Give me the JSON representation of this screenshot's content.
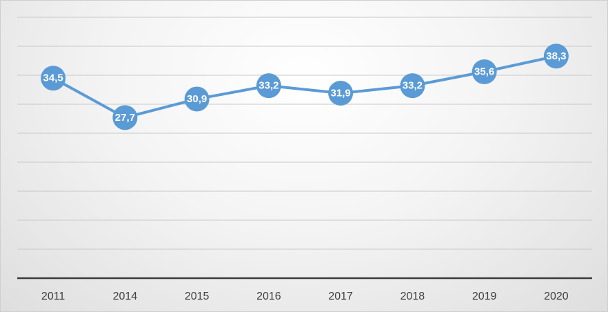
{
  "colors": {
    "series": "#5b9bd5",
    "data_label": "#ffffff",
    "gridline": "#c8c8c8",
    "axis": "#3a3a3a",
    "tick_label": "#404040"
  },
  "chart_data": {
    "type": "line",
    "title": "",
    "xlabel": "",
    "ylabel": "",
    "categories": [
      "2011",
      "2014",
      "2015",
      "2016",
      "2017",
      "2018",
      "2019",
      "2020"
    ],
    "series": [
      {
        "values": [
          34.5,
          27.7,
          30.9,
          33.2,
          31.9,
          33.2,
          35.6,
          38.3
        ],
        "data_labels": [
          "34,5",
          "27,7",
          "30,9",
          "33,2",
          "31,9",
          "33,2",
          "35,6",
          "38,3"
        ]
      }
    ],
    "ylim": [
      0,
      45
    ],
    "y_gridline_step": 5,
    "y_tick_labels_shown": false,
    "grid": true,
    "legend": "none",
    "markers": "circle"
  }
}
